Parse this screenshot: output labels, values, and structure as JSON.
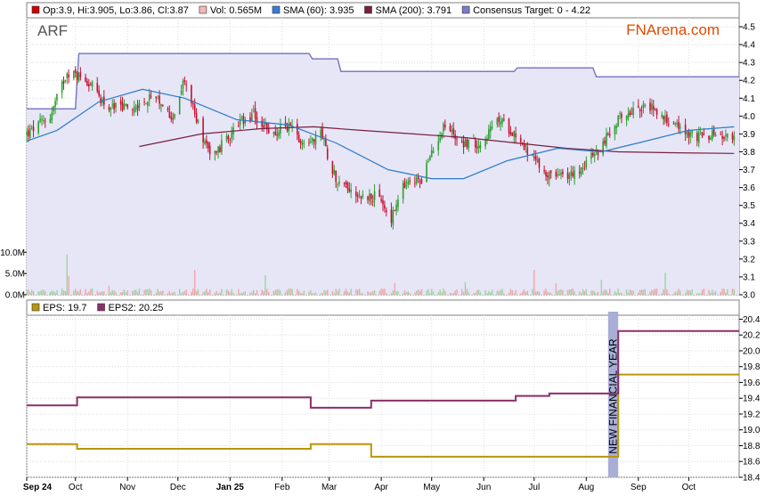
{
  "legend_top": [
    {
      "text": "Op:3.9, Hi:3.905, Lo:3.86, Cl:3.87",
      "color": "#cc0000"
    },
    {
      "text": "Vol: 0.565M",
      "color": "#f4b6b6"
    },
    {
      "text": "SMA (60): 3.935",
      "color": "#3a7bd5"
    },
    {
      "text": "SMA (200): 3.791",
      "color": "#7a1f3d"
    },
    {
      "text": "Consensus Target: 0 - 4.22",
      "color": "#7b7bc8"
    }
  ],
  "legend_bottom": [
    {
      "text": "EPS: 19.7",
      "color": "#b8960c"
    },
    {
      "text": "EPS2: 20.25",
      "color": "#8b2f6b"
    }
  ],
  "ticker": "ARF",
  "brand": "FNArena.com",
  "annotation": "NEW FINANCIAL YEAR",
  "colors": {
    "up": "#2e9e2e",
    "down": "#c8102e",
    "sma60": "#2e7bc8",
    "sma200": "#7a1f3d",
    "consensus_fill": "#e6e6f7",
    "consensus_line": "#7b7bc8",
    "eps": "#b8960c",
    "eps2": "#8b2f6b",
    "fy_band": "#a9aed6",
    "brand": "#e04b00"
  },
  "chart_data": [
    {
      "type": "candlestick",
      "x_ticks": [
        "Sep 24",
        "Oct",
        "Nov",
        "Dec",
        "Jan 25",
        "Feb",
        "Mar",
        "Apr",
        "May",
        "Jun",
        "Jul",
        "Aug",
        "Sep",
        "Oct"
      ],
      "x_range": [
        "2024-09-02",
        "2025-10-31"
      ],
      "ylim": [
        3.0,
        4.55
      ],
      "y_ticks": [
        "3.0",
        "3.1",
        "3.2",
        "3.3",
        "3.4",
        "3.5",
        "3.6",
        "3.7",
        "3.8",
        "3.9",
        "4.0",
        "4.1",
        "4.2",
        "4.3",
        "4.4",
        "4.5"
      ],
      "volume_ticks": [
        "0.0M",
        "5.0M",
        "10.0M"
      ],
      "volume_max": 13,
      "price_anchors": [
        [
          "2024-09-02",
          3.9
        ],
        [
          "2024-09-16",
          4.0
        ],
        [
          "2024-09-26",
          4.25
        ],
        [
          "2024-10-08",
          4.2
        ],
        [
          "2024-10-20",
          4.05
        ],
        [
          "2024-11-05",
          4.05
        ],
        [
          "2024-11-15",
          4.1
        ],
        [
          "2024-11-28",
          4.0
        ],
        [
          "2024-12-05",
          4.2
        ],
        [
          "2024-12-15",
          3.9
        ],
        [
          "2024-12-22",
          3.78
        ],
        [
          "2025-01-06",
          3.95
        ],
        [
          "2025-01-15",
          4.0
        ],
        [
          "2025-01-26",
          3.9
        ],
        [
          "2025-02-05",
          3.95
        ],
        [
          "2025-02-14",
          3.85
        ],
        [
          "2025-02-24",
          3.9
        ],
        [
          "2025-03-05",
          3.65
        ],
        [
          "2025-03-20",
          3.55
        ],
        [
          "2025-03-30",
          3.55
        ],
        [
          "2025-04-07",
          3.42
        ],
        [
          "2025-04-14",
          3.6
        ],
        [
          "2025-04-25",
          3.65
        ],
        [
          "2025-05-08",
          3.95
        ],
        [
          "2025-05-20",
          3.85
        ],
        [
          "2025-05-30",
          3.85
        ],
        [
          "2025-06-10",
          3.98
        ],
        [
          "2025-06-20",
          3.9
        ],
        [
          "2025-07-01",
          3.75
        ],
        [
          "2025-07-12",
          3.65
        ],
        [
          "2025-07-25",
          3.68
        ],
        [
          "2025-08-08",
          3.8
        ],
        [
          "2025-08-20",
          3.98
        ],
        [
          "2025-08-30",
          4.05
        ],
        [
          "2025-09-10",
          4.05
        ],
        [
          "2025-09-22",
          3.95
        ],
        [
          "2025-10-05",
          3.88
        ],
        [
          "2025-10-15",
          3.9
        ],
        [
          "2025-10-28",
          3.87
        ]
      ],
      "sma60": [
        [
          "2024-09-02",
          3.86
        ],
        [
          "2024-09-20",
          3.92
        ],
        [
          "2024-10-15",
          4.08
        ],
        [
          "2024-11-10",
          4.15
        ],
        [
          "2024-12-05",
          4.1
        ],
        [
          "2025-01-05",
          3.98
        ],
        [
          "2025-02-05",
          3.95
        ],
        [
          "2025-03-05",
          3.85
        ],
        [
          "2025-04-05",
          3.7
        ],
        [
          "2025-05-01",
          3.65
        ],
        [
          "2025-05-20",
          3.65
        ],
        [
          "2025-06-15",
          3.75
        ],
        [
          "2025-07-15",
          3.82
        ],
        [
          "2025-08-10",
          3.8
        ],
        [
          "2025-09-01",
          3.85
        ],
        [
          "2025-10-01",
          3.92
        ],
        [
          "2025-10-28",
          3.94
        ]
      ],
      "sma200": [
        [
          "2024-11-08",
          3.83
        ],
        [
          "2024-12-15",
          3.9
        ],
        [
          "2025-01-20",
          3.93
        ],
        [
          "2025-02-20",
          3.94
        ],
        [
          "2025-03-20",
          3.92
        ],
        [
          "2025-04-20",
          3.9
        ],
        [
          "2025-05-20",
          3.88
        ],
        [
          "2025-06-20",
          3.85
        ],
        [
          "2025-07-20",
          3.82
        ],
        [
          "2025-08-20",
          3.8
        ],
        [
          "2025-09-20",
          3.795
        ],
        [
          "2025-10-28",
          3.791
        ]
      ],
      "consensus_target": [
        [
          "2024-09-02",
          4.04
        ],
        [
          "2024-10-01",
          4.04
        ],
        [
          "2024-10-03",
          4.35
        ],
        [
          "2025-02-17",
          4.35
        ],
        [
          "2025-02-19",
          4.32
        ],
        [
          "2025-03-06",
          4.32
        ],
        [
          "2025-03-08",
          4.25
        ],
        [
          "2025-06-19",
          4.25
        ],
        [
          "2025-06-21",
          4.27
        ],
        [
          "2025-08-05",
          4.27
        ],
        [
          "2025-08-07",
          4.22
        ],
        [
          "2025-10-31",
          4.22
        ]
      ]
    },
    {
      "type": "line",
      "ylim": [
        18.4,
        20.45
      ],
      "y_ticks": [
        "18.4",
        "18.6",
        "18.8",
        "19.0",
        "19.2",
        "19.4",
        "19.6",
        "19.8",
        "20.0",
        "20.2",
        "20.4"
      ],
      "series": [
        {
          "name": "EPS",
          "steps": [
            [
              "2024-09-02",
              18.82
            ],
            [
              "2024-10-02",
              18.76
            ],
            [
              "2025-02-18",
              18.82
            ],
            [
              "2025-03-26",
              18.66
            ],
            [
              "2025-08-20",
              19.7
            ],
            [
              "2025-10-31",
              19.7
            ]
          ]
        },
        {
          "name": "EPS2",
          "steps": [
            [
              "2024-09-02",
              19.31
            ],
            [
              "2024-10-02",
              19.41
            ],
            [
              "2025-02-18",
              19.28
            ],
            [
              "2025-03-26",
              19.37
            ],
            [
              "2025-06-20",
              19.43
            ],
            [
              "2025-07-10",
              19.46
            ],
            [
              "2025-08-20",
              20.25
            ],
            [
              "2025-10-31",
              20.25
            ]
          ]
        }
      ],
      "fy_band": [
        "2025-08-14",
        "2025-08-20"
      ]
    }
  ]
}
